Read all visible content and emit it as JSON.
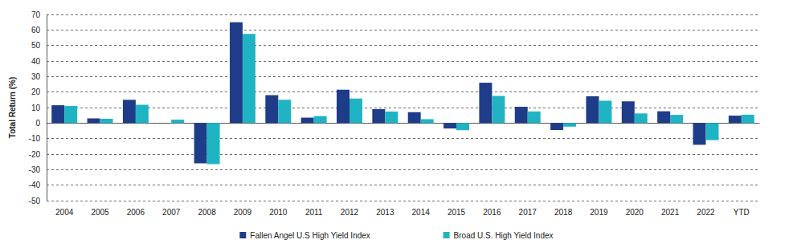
{
  "chart_data": {
    "type": "bar",
    "y_label": "Total Return (%)",
    "categories": [
      "2004",
      "2005",
      "2006",
      "2007",
      "2008",
      "2009",
      "2010",
      "2011",
      "2012",
      "2013",
      "2014",
      "2015",
      "2016",
      "2017",
      "2018",
      "2019",
      "2020",
      "2021",
      "2022",
      "YTD"
    ],
    "series": [
      {
        "name": "Fallen Angel U.S High Yield Index",
        "color": "#1f3c88",
        "values": [
          11.5,
          3,
          15,
          0,
          -26,
          65,
          18,
          3.5,
          21.5,
          9,
          7,
          -3.5,
          26,
          10.5,
          -4.5,
          17.3,
          14,
          7.6,
          -14,
          4.8
        ]
      },
      {
        "name": "Broad U.S. High Yield Index",
        "color": "#1fb3c4",
        "values": [
          11,
          2.7,
          11.8,
          2.2,
          -26.5,
          57.5,
          15,
          4.5,
          15.8,
          7.4,
          2.5,
          -4.6,
          17.5,
          7.5,
          -2.3,
          14.4,
          6.2,
          5.3,
          -11,
          5.4
        ]
      }
    ],
    "ylim": [
      -50,
      70
    ],
    "yticks": [
      -50,
      -40,
      -30,
      -20,
      -10,
      0,
      10,
      20,
      30,
      40,
      50,
      60,
      70
    ],
    "grid": true,
    "legend": "bottom"
  }
}
